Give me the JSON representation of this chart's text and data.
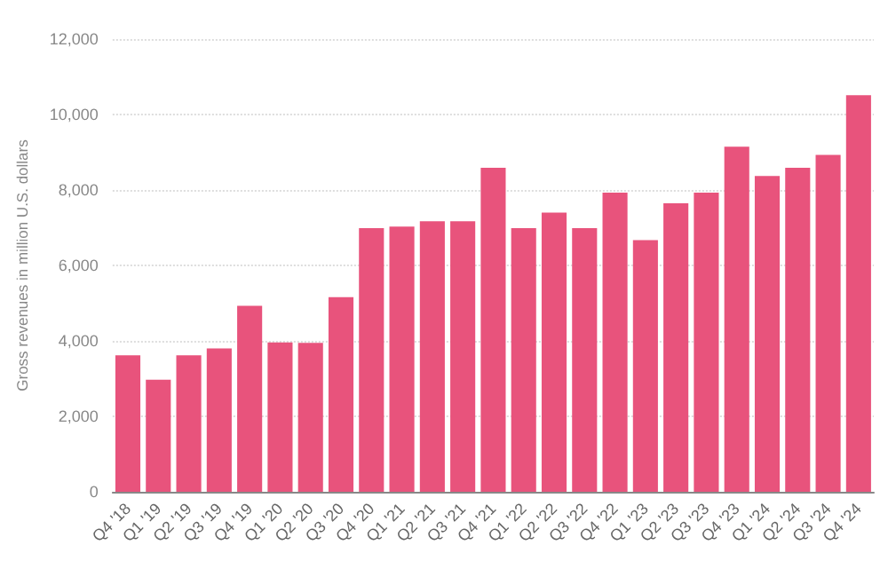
{
  "chart_data": {
    "type": "bar",
    "ylabel": "Gross revenues in million U.S. dollars",
    "categories": [
      "Q4 '18",
      "Q1 '19",
      "Q2 '19",
      "Q3 '19",
      "Q4 '19",
      "Q1 '20",
      "Q2 '20",
      "Q3 '20",
      "Q4 '20",
      "Q1 '21",
      "Q2 '21",
      "Q3 '21",
      "Q4 '21",
      "Q1 '22",
      "Q2 '22",
      "Q3 '22",
      "Q4 '22",
      "Q1 '23",
      "Q2 '23",
      "Q3 '23",
      "Q4 '23",
      "Q1 '24",
      "Q2 '24",
      "Q3 '24",
      "Q4 '24"
    ],
    "values": [
      3620,
      2970,
      3620,
      3800,
      4930,
      3960,
      3950,
      5160,
      6990,
      7030,
      7170,
      7170,
      8590,
      6990,
      7400,
      6990,
      7930,
      6670,
      7650,
      7930,
      9150,
      8370,
      8590,
      8930,
      10510
    ],
    "color": "#e8537c",
    "ylim": [
      0,
      12000
    ],
    "yticks": [
      0,
      {
        "value": 2000,
        "label": "2,000"
      },
      {
        "value": 4000,
        "label": "4,000"
      },
      {
        "value": 6000,
        "label": "6,000"
      },
      {
        "value": 8000,
        "label": "8,000"
      },
      {
        "value": 10000,
        "label": "10,000"
      },
      {
        "value": 12000,
        "label": "12,000"
      }
    ],
    "grid": "y"
  }
}
